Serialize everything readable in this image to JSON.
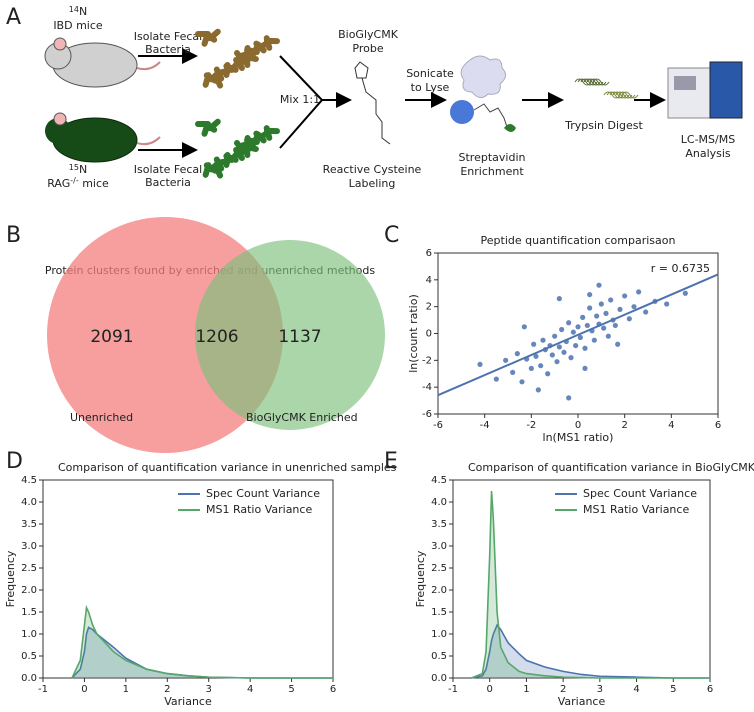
{
  "panel_labels": [
    "A",
    "B",
    "C",
    "D",
    "E"
  ],
  "diagram": {
    "mouse_1": {
      "isotope": "14",
      "element": "N",
      "name": "IBD mice"
    },
    "mouse_2": {
      "isotope": "15",
      "element": "N",
      "name": "RAG",
      "genotype": "-/-",
      "suffix": " mice"
    },
    "isolate_1": [
      "Isolate Fecal",
      "Bacteria"
    ],
    "isolate_2": [
      "Isolate Fecal",
      "Bacteria"
    ],
    "mix": "Mix 1:1",
    "probe": [
      "BioGlyCMK",
      "Probe"
    ],
    "labeling": [
      "Reactive Cysteine",
      "Labeling"
    ],
    "lyse": [
      "Sonicate",
      "to Lyse"
    ],
    "enrichment": [
      "Streptavidin",
      "Enrichment"
    ],
    "digest": "Trypsin Digest",
    "analysis": [
      "LC-MS/MS",
      "Analysis"
    ]
  },
  "chart_data": [
    {
      "type": "venn",
      "title": "Protein clusters found by enriched and unenriched methods",
      "sets": [
        "Unenriched",
        "BioGlyCMK Enriched"
      ],
      "values": [
        2091,
        1206,
        1137
      ],
      "colors": [
        "#f47e7e",
        "#7cc07c"
      ]
    },
    {
      "type": "scatter",
      "title": "Peptide quantification comparisaon",
      "x_label": "ln(MS1 ratio)",
      "y_label": "ln(count ratio)",
      "annotation": "r = 0.6735",
      "color": "#4c72b0",
      "x": [
        -4.2,
        -3.5,
        -3.1,
        -2.8,
        -2.6,
        -2.4,
        -2.2,
        -2.0,
        -1.9,
        -1.8,
        -1.6,
        -1.5,
        -1.4,
        -1.3,
        -1.2,
        -1.1,
        -1.0,
        -0.9,
        -0.8,
        -0.7,
        -0.6,
        -0.5,
        -0.4,
        -0.3,
        -0.2,
        -0.1,
        0,
        0.1,
        0.2,
        0.3,
        0.4,
        0.5,
        0.6,
        0.7,
        0.8,
        0.9,
        1.0,
        1.1,
        1.2,
        1.3,
        1.4,
        1.5,
        1.6,
        1.8,
        2.0,
        2.2,
        2.4,
        2.6,
        2.9,
        3.3,
        3.8,
        4.6,
        -1.7,
        -0.8,
        0.3,
        0.9,
        -2.3,
        1.7,
        -0.4,
        0.5
      ],
      "values": [
        -2.3,
        -3.4,
        -2.0,
        -2.9,
        -1.5,
        -3.6,
        -1.9,
        -2.6,
        -0.8,
        -1.7,
        -2.4,
        -0.5,
        -1.2,
        -3.0,
        -0.9,
        -1.6,
        -0.2,
        -2.1,
        -1.0,
        0.3,
        -1.4,
        -0.6,
        0.8,
        -1.8,
        0.1,
        -0.9,
        0.5,
        -0.3,
        1.2,
        -1.1,
        0.6,
        1.9,
        0.2,
        -0.5,
        1.3,
        0.7,
        2.2,
        0.4,
        1.5,
        -0.2,
        2.5,
        1.0,
        0.6,
        1.8,
        2.8,
        1.1,
        2.0,
        3.1,
        1.6,
        2.4,
        2.2,
        3.0,
        -4.2,
        2.6,
        -2.6,
        3.6,
        0.5,
        -0.8,
        -4.8,
        2.9
      ],
      "fit_line": {
        "x": [
          -6,
          6
        ],
        "values": [
          -4.6,
          4.4
        ]
      },
      "xlim": [
        -6,
        6
      ],
      "ylim": [
        -6,
        6
      ],
      "xticks": [
        -6,
        -4,
        -2,
        0,
        2,
        4,
        6
      ],
      "yticks": [
        -6,
        -4,
        -2,
        0,
        2,
        4,
        6
      ]
    },
    {
      "type": "density",
      "title": "Comparison of quantification variance in unenriched samples",
      "x_label": "Variance",
      "y_label": "Frequency",
      "legend": "upper right",
      "x": [
        -0.3,
        -0.1,
        0,
        0.05,
        0.1,
        0.2,
        0.3,
        0.5,
        0.7,
        1,
        1.5,
        2,
        2.5,
        3,
        4,
        5,
        6
      ],
      "series": [
        {
          "name": "Spec Count Variance",
          "color": "#4c72b0",
          "values": [
            0,
            0.2,
            0.6,
            1.0,
            1.15,
            1.1,
            1.0,
            0.85,
            0.7,
            0.45,
            0.2,
            0.1,
            0.05,
            0.02,
            0,
            0,
            0
          ]
        },
        {
          "name": "MS1 Ratio Variance",
          "color": "#55a868",
          "values": [
            0,
            0.4,
            1.2,
            1.6,
            1.5,
            1.2,
            1.0,
            0.8,
            0.6,
            0.4,
            0.2,
            0.1,
            0.05,
            0.02,
            0,
            0,
            0
          ]
        }
      ],
      "xlim": [
        -1,
        6
      ],
      "ylim": [
        0,
        4.5
      ],
      "xticks": [
        -1,
        0,
        1,
        2,
        3,
        4,
        5,
        6
      ],
      "yticks": [
        {
          "value": 0,
          "label": "0.0"
        },
        {
          "value": 0.5,
          "label": "0.5"
        },
        {
          "value": 1,
          "label": "1.0"
        },
        {
          "value": 1.5,
          "label": "1.5"
        },
        {
          "value": 2,
          "label": "2.0"
        },
        {
          "value": 2.5,
          "label": "2.5"
        },
        {
          "value": 3,
          "label": "3.0"
        },
        {
          "value": 3.5,
          "label": "3.5"
        },
        {
          "value": 4,
          "label": "4.0"
        },
        {
          "value": 4.5,
          "label": "4.5"
        }
      ]
    },
    {
      "type": "density",
      "title": "Comparison of quantification variance in BioGlyCMK enriched samples",
      "x_label": "Variance",
      "y_label": "Frequency",
      "legend": "upper right",
      "x": [
        -0.5,
        -0.2,
        -0.1,
        0,
        0.05,
        0.1,
        0.2,
        0.3,
        0.5,
        0.8,
        1,
        1.5,
        2,
        2.5,
        3,
        4,
        5,
        6
      ],
      "series": [
        {
          "name": "Spec Count Variance",
          "color": "#4c72b0",
          "values": [
            0,
            0.05,
            0.2,
            0.6,
            0.85,
            1.0,
            1.2,
            1.1,
            0.8,
            0.55,
            0.4,
            0.25,
            0.15,
            0.08,
            0.04,
            0.02,
            0,
            0
          ]
        },
        {
          "name": "MS1 Ratio Variance",
          "color": "#55a868",
          "values": [
            0,
            0.1,
            0.6,
            2.8,
            4.25,
            3.6,
            1.5,
            0.7,
            0.35,
            0.15,
            0.1,
            0.05,
            0.02,
            0.01,
            0,
            0,
            0,
            0
          ]
        }
      ],
      "xlim": [
        -1,
        6
      ],
      "ylim": [
        0,
        4.5
      ],
      "xticks": [
        -1,
        0,
        1,
        2,
        3,
        4,
        5,
        6
      ],
      "yticks": [
        {
          "value": 0,
          "label": "0.0"
        },
        {
          "value": 0.5,
          "label": "0.5"
        },
        {
          "value": 1,
          "label": "1.0"
        },
        {
          "value": 1.5,
          "label": "1.5"
        },
        {
          "value": 2,
          "label": "2.0"
        },
        {
          "value": 2.5,
          "label": "2.5"
        },
        {
          "value": 3,
          "label": "3.0"
        },
        {
          "value": 3.5,
          "label": "3.5"
        },
        {
          "value": 4,
          "label": "4.0"
        },
        {
          "value": 4.5,
          "label": "4.5"
        }
      ]
    }
  ]
}
